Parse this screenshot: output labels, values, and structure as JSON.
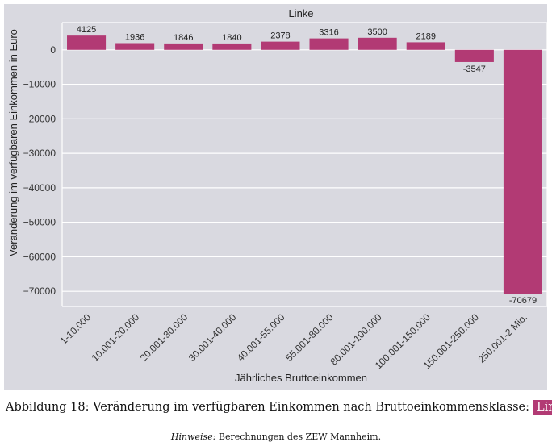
{
  "colors": {
    "bar": "#b23a74",
    "background": "#d9d9e0",
    "grid": "#ffffff",
    "caption_tag": "#b23a74"
  },
  "chart_data": {
    "type": "bar",
    "title": "Linke",
    "xlabel": "Jährliches Bruttoeinkommen",
    "ylabel": "Veränderung im verfügbaren Einkommen in Euro",
    "categories": [
      "1-10.000",
      "10.001-20.000",
      "20.001-30.000",
      "30.001-40.000",
      "40.001-55.000",
      "55.001-80.000",
      "80.001-100.000",
      "100.001-150.000",
      "150.001-250.000",
      "250.001-2 Mio."
    ],
    "values": [
      4125,
      1936,
      1846,
      1840,
      2378,
      3316,
      3500,
      2189,
      -3547,
      -70679
    ],
    "data_labels": [
      "4125",
      "1936",
      "1846",
      "1840",
      "2378",
      "3316",
      "3500",
      "2189",
      "-3547",
      "-70679"
    ],
    "yticks": [
      0,
      -10000,
      -20000,
      -30000,
      -40000,
      -50000,
      -60000,
      -70000
    ],
    "ytick_labels": [
      "0",
      "−10000",
      "−20000",
      "−30000",
      "−40000",
      "−50000",
      "−60000",
      "−70000"
    ],
    "ylim": [
      -74400,
      7900
    ],
    "grid": true,
    "legend": "none"
  },
  "caption": {
    "text": "Abbildung 18: Veränderung im verfügbaren Einkommen nach Bruttoeinkommensklasse:",
    "tag": "Linke"
  },
  "note": {
    "label": "Hinweise:",
    "text": " Berechnungen des ZEW Mannheim."
  }
}
